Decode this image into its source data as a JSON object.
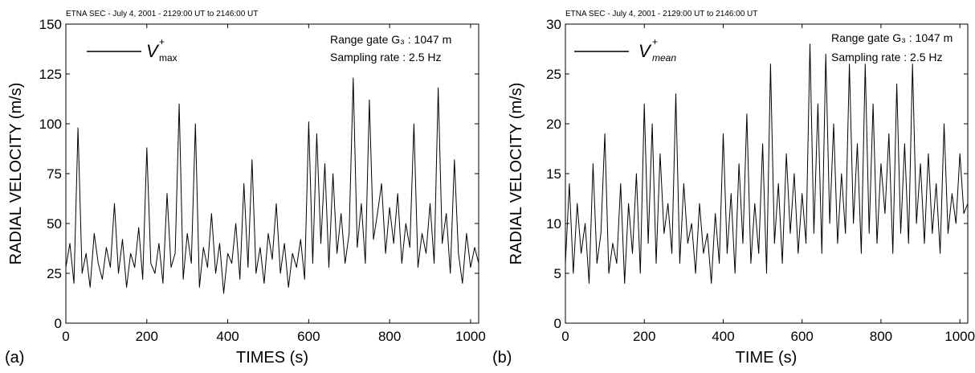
{
  "chart_data": [
    {
      "type": "line",
      "panel_label": "(a)",
      "title": "ETNA SEC - July 4, 2001 - 2129:00 UT to 2146:00 UT",
      "xlabel": "TIMES (s)",
      "ylabel": "RADIAL VELOCITY (m/s)",
      "xlim": [
        0,
        1020
      ],
      "ylim": [
        0,
        150
      ],
      "xticks": [
        0,
        200,
        400,
        600,
        800,
        1000
      ],
      "yticks": [
        0,
        25,
        50,
        75,
        100,
        125,
        150
      ],
      "legend": {
        "placement": "top-left",
        "base": "V",
        "sup": "+",
        "sub": "max"
      },
      "annotations": [
        "Range gate G₃ : 1047 m",
        "Sampling rate : 2.5 Hz"
      ],
      "series": [
        {
          "style": "black-line",
          "x": [
            0,
            10,
            20,
            30,
            40,
            50,
            60,
            70,
            80,
            90,
            100,
            110,
            120,
            130,
            140,
            150,
            160,
            170,
            180,
            190,
            200,
            210,
            220,
            230,
            240,
            250,
            260,
            270,
            280,
            290,
            300,
            310,
            320,
            330,
            340,
            350,
            360,
            370,
            380,
            390,
            400,
            410,
            420,
            430,
            440,
            450,
            460,
            470,
            480,
            490,
            500,
            510,
            520,
            530,
            540,
            550,
            560,
            570,
            580,
            590,
            600,
            610,
            620,
            630,
            640,
            650,
            660,
            670,
            680,
            690,
            700,
            710,
            720,
            730,
            740,
            750,
            760,
            770,
            780,
            790,
            800,
            810,
            820,
            830,
            840,
            850,
            860,
            870,
            880,
            890,
            900,
            910,
            920,
            930,
            940,
            950,
            960,
            970,
            980,
            990,
            1000,
            1010,
            1020
          ],
          "y": [
            28,
            40,
            20,
            98,
            25,
            35,
            18,
            45,
            30,
            22,
            38,
            28,
            60,
            25,
            42,
            18,
            35,
            28,
            48,
            22,
            88,
            30,
            25,
            40,
            20,
            65,
            28,
            35,
            110,
            22,
            45,
            30,
            100,
            18,
            38,
            28,
            55,
            25,
            40,
            15,
            35,
            30,
            50,
            22,
            70,
            28,
            82,
            25,
            38,
            20,
            45,
            32,
            60,
            25,
            40,
            18,
            35,
            28,
            42,
            22,
            101,
            30,
            95,
            40,
            80,
            28,
            75,
            35,
            55,
            30,
            45,
            123,
            38,
            60,
            30,
            112,
            42,
            55,
            70,
            35,
            58,
            40,
            65,
            30,
            50,
            38,
            100,
            28,
            45,
            35,
            60,
            30,
            118,
            40,
            55,
            25,
            82,
            35,
            20,
            45,
            28,
            38,
            30
          ]
        }
      ]
    },
    {
      "type": "line",
      "panel_label": "(b)",
      "title": "ETNA SEC - July 4, 2001 - 2129:00 UT to 2146:00 UT",
      "xlabel": "TIME (s)",
      "ylabel": "RADIAL VELOCITY (m/s)",
      "xlim": [
        0,
        1020
      ],
      "ylim": [
        0,
        30
      ],
      "xticks": [
        0,
        200,
        400,
        600,
        800,
        1000
      ],
      "yticks": [
        0,
        5,
        10,
        15,
        20,
        25,
        30
      ],
      "legend": {
        "placement": "top-left",
        "base": "V",
        "sup": "+",
        "sub": "mean"
      },
      "annotations": [
        "Range gate G₃ : 1047 m",
        "Sampling rate : 2.5 Hz"
      ],
      "series": [
        {
          "style": "black-line",
          "x": [
            0,
            10,
            20,
            30,
            40,
            50,
            60,
            70,
            80,
            90,
            100,
            110,
            120,
            130,
            140,
            150,
            160,
            170,
            180,
            190,
            200,
            210,
            220,
            230,
            240,
            250,
            260,
            270,
            280,
            290,
            300,
            310,
            320,
            330,
            340,
            350,
            360,
            370,
            380,
            390,
            400,
            410,
            420,
            430,
            440,
            450,
            460,
            470,
            480,
            490,
            500,
            510,
            520,
            530,
            540,
            550,
            560,
            570,
            580,
            590,
            600,
            610,
            620,
            630,
            640,
            650,
            660,
            670,
            680,
            690,
            700,
            710,
            720,
            730,
            740,
            750,
            760,
            770,
            780,
            790,
            800,
            810,
            820,
            830,
            840,
            850,
            860,
            870,
            880,
            890,
            900,
            910,
            920,
            930,
            940,
            950,
            960,
            970,
            980,
            990,
            1000,
            1010,
            1020
          ],
          "y": [
            6,
            14,
            5,
            12,
            7,
            10,
            4,
            16,
            6,
            9,
            19,
            5,
            8,
            6,
            14,
            4,
            12,
            7,
            15,
            5,
            22,
            8,
            20,
            6,
            17,
            9,
            12,
            7,
            23,
            6,
            14,
            8,
            10,
            5,
            12,
            7,
            9,
            4,
            11,
            6,
            19,
            7,
            13,
            5,
            16,
            8,
            21,
            6,
            12,
            7,
            18,
            5,
            26,
            8,
            14,
            6,
            17,
            9,
            15,
            7,
            13,
            8,
            28,
            9,
            22,
            7,
            27,
            10,
            20,
            8,
            15,
            9,
            26,
            10,
            18,
            7,
            26,
            9,
            22,
            8,
            16,
            11,
            19,
            7,
            24,
            9,
            18,
            8,
            26,
            10,
            16,
            8,
            17,
            9,
            14,
            7,
            20,
            9,
            13,
            10,
            17,
            11,
            12
          ]
        }
      ]
    }
  ]
}
